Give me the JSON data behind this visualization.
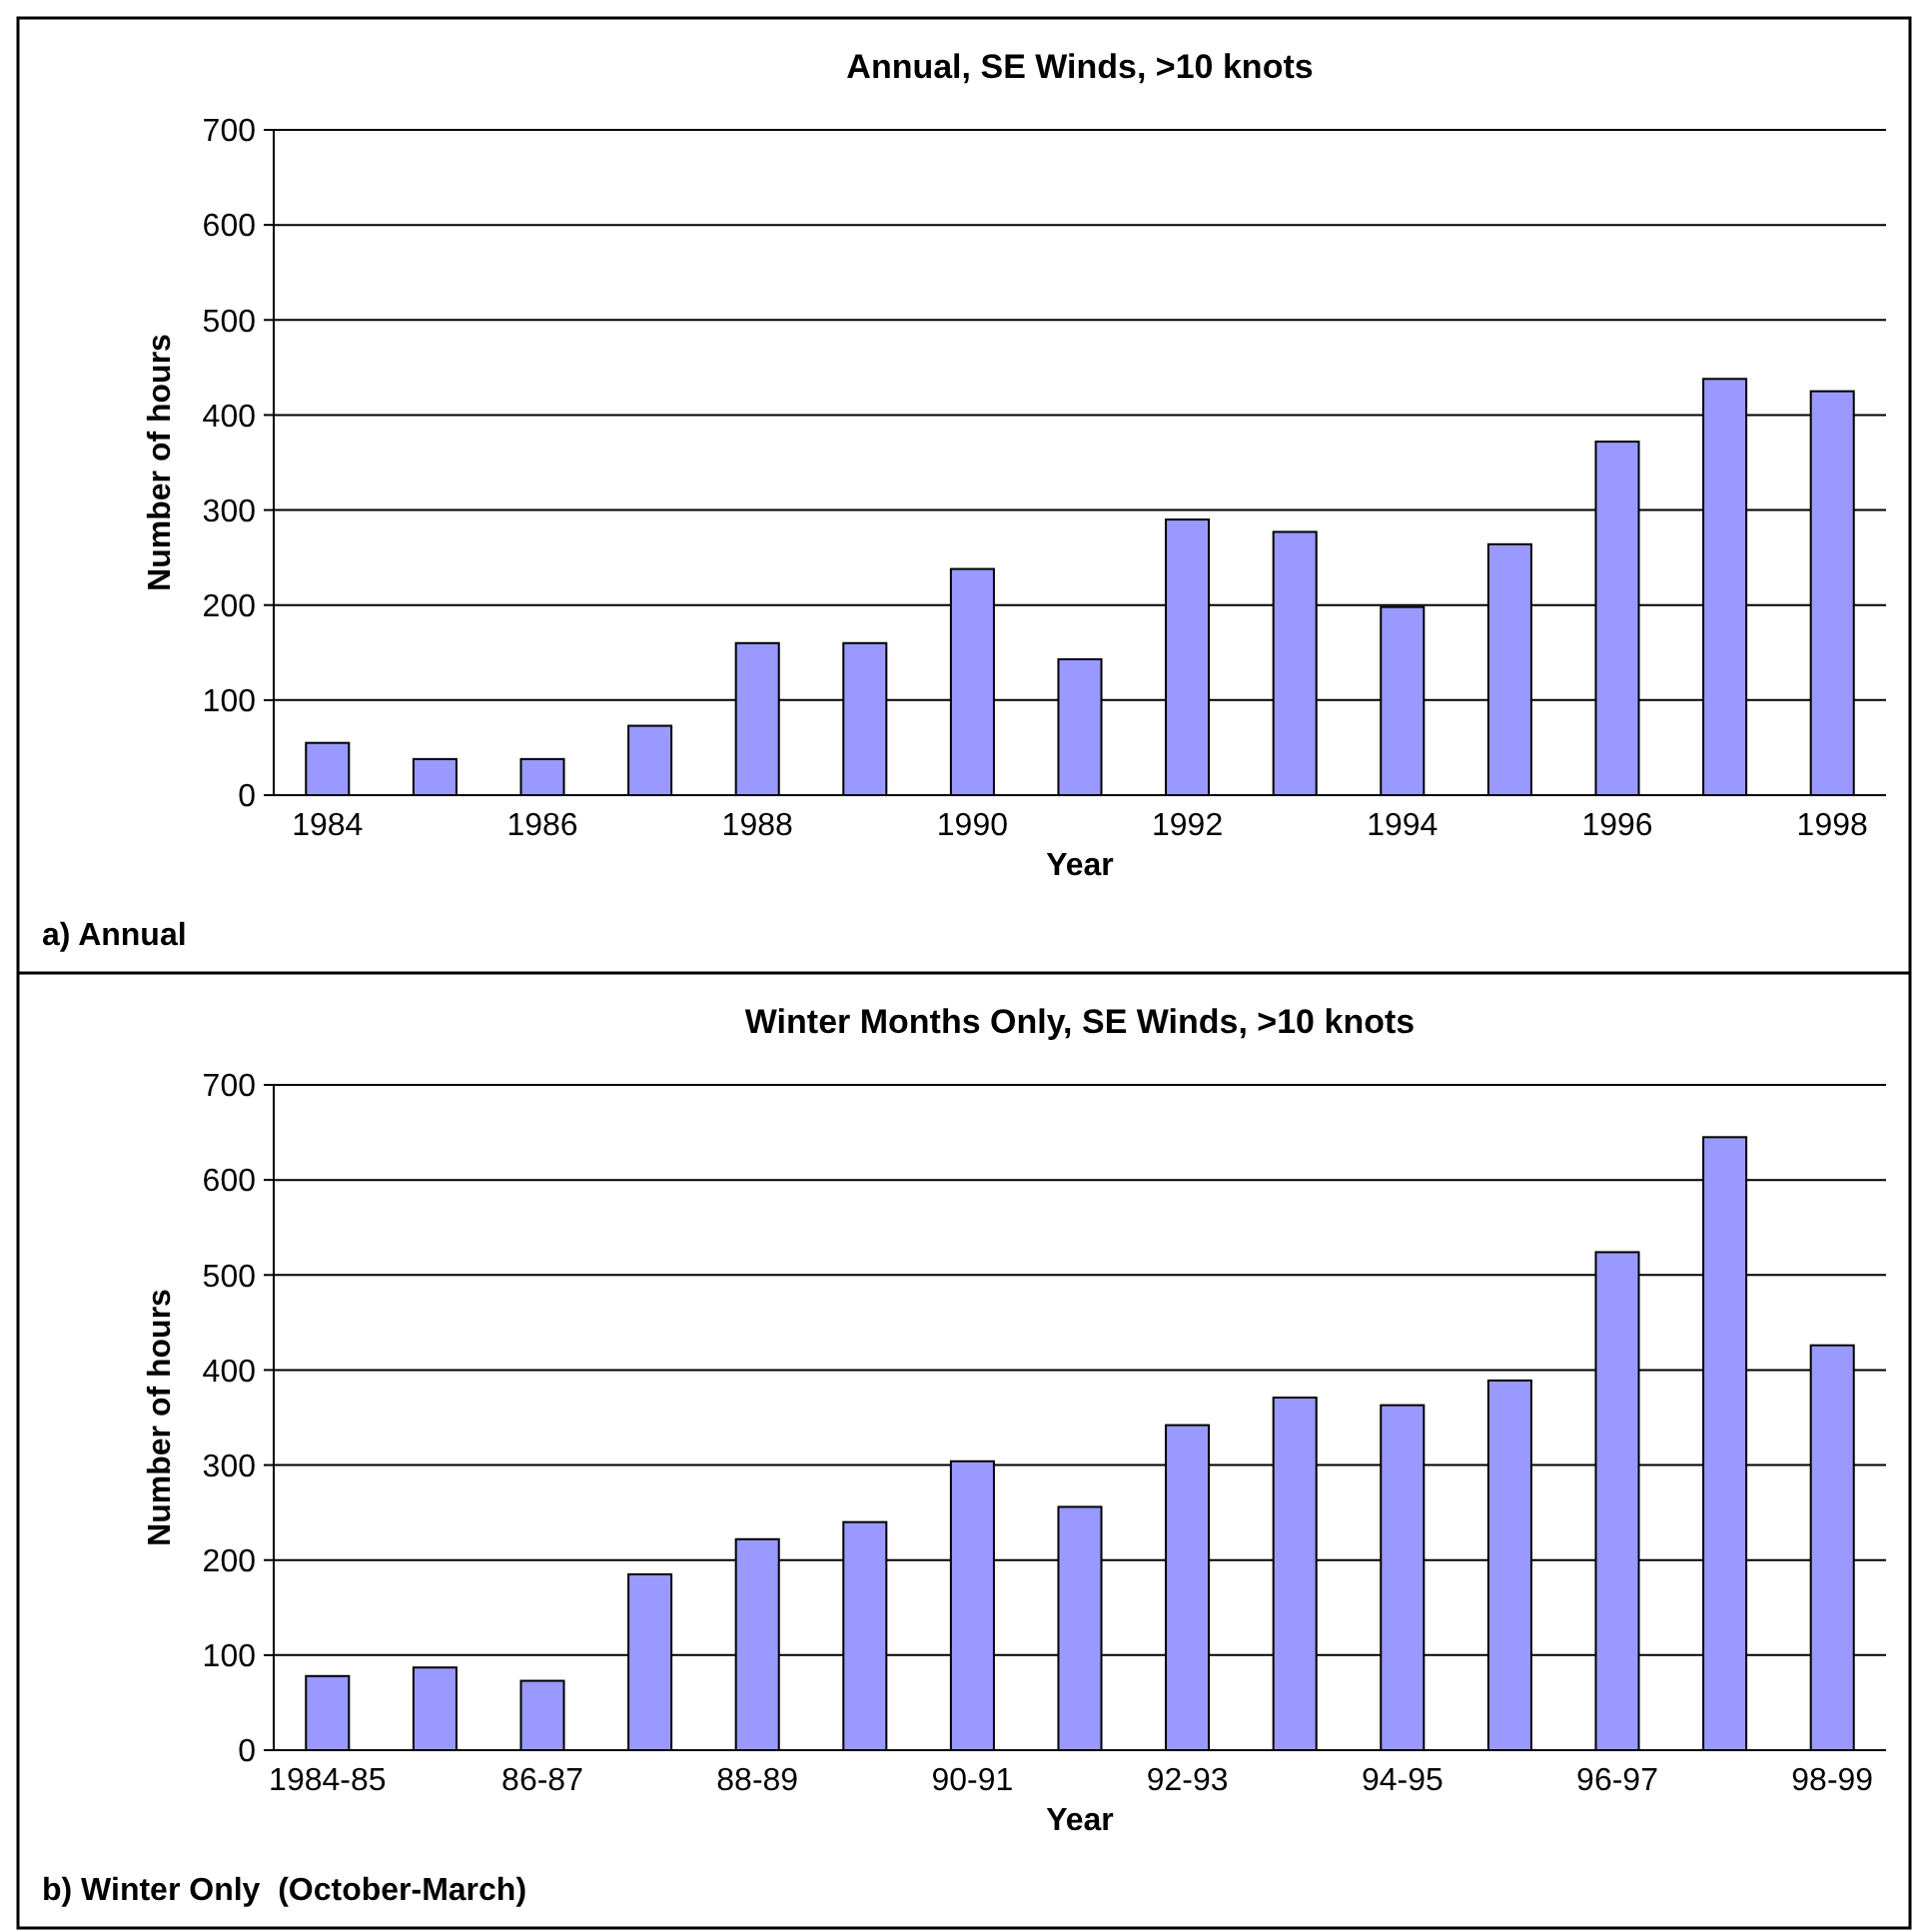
{
  "chart_data": [
    {
      "type": "bar",
      "title": "Annual, SE Winds, >10 knots",
      "xlabel": "Year",
      "ylabel": "Number of hours",
      "categories": [
        "1984",
        null,
        "1986",
        null,
        "1988",
        null,
        "1990",
        null,
        "1992",
        null,
        "1994",
        null,
        "1996",
        null,
        "1998"
      ],
      "values": [
        55,
        38,
        38,
        73,
        160,
        160,
        238,
        143,
        290,
        277,
        198,
        264,
        372,
        438,
        425
      ],
      "color": "#9999ff",
      "ylim": [
        0,
        700
      ],
      "yticks": [
        0,
        100,
        200,
        300,
        400,
        500,
        600,
        700
      ],
      "grid": "y",
      "annotations": [
        "a) Annual"
      ]
    },
    {
      "type": "bar",
      "title": "Winter Months Only, SE Winds, >10 knots",
      "xlabel": "Year",
      "ylabel": "Number of hours",
      "categories": [
        "1984-85",
        null,
        "86-87",
        null,
        "88-89",
        null,
        "90-91",
        null,
        "92-93",
        null,
        "94-95",
        null,
        "96-97",
        null,
        "98-99"
      ],
      "values": [
        78,
        87,
        73,
        185,
        222,
        240,
        304,
        256,
        342,
        371,
        363,
        389,
        524,
        645,
        426
      ],
      "color": "#9999ff",
      "ylim": [
        0,
        700
      ],
      "yticks": [
        0,
        100,
        200,
        300,
        400,
        500,
        600,
        700
      ],
      "grid": "y",
      "annotations": [
        "b) Winter Only  (October-March)"
      ]
    }
  ]
}
